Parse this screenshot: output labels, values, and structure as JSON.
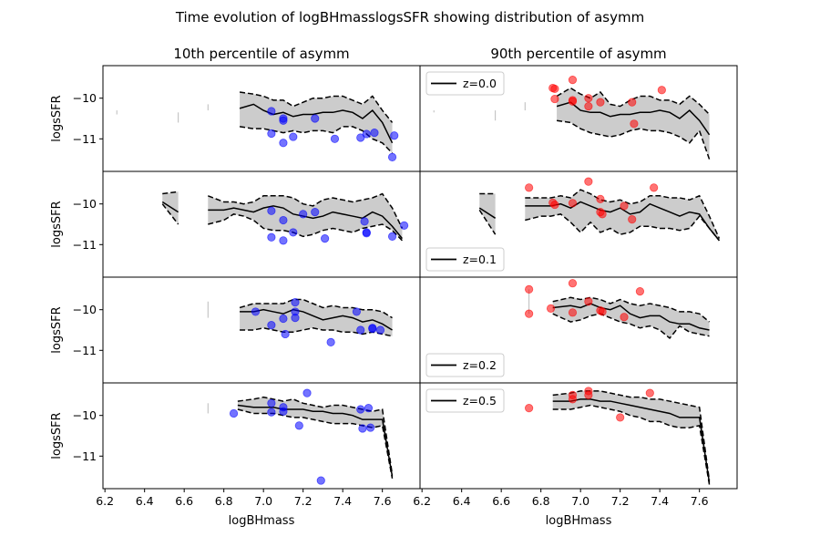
{
  "figure": {
    "title": "Time evolution of logBHmasslogsSFR showing distribution of asymm",
    "left_column_title": "10th percentile of asymm",
    "right_column_title": "90th percentile of asymm",
    "xlabel": "logBHmass",
    "ylabel": "logsSFR",
    "x_ticks": [
      "6.2",
      "6.4",
      "6.6",
      "6.8",
      "7.0",
      "7.2",
      "7.4",
      "7.6"
    ],
    "y_ticks": [
      "−10",
      "−11"
    ]
  },
  "colors": {
    "band": "#cccccc",
    "line": "#000000",
    "left_points": "#0000ff",
    "right_points": "#ff0000"
  },
  "chart_data": {
    "type": "line+scatter",
    "xlim": [
      6.19,
      7.79
    ],
    "ylim": [
      -11.8,
      -9.2
    ],
    "shared_axes": true,
    "panels": [
      {
        "id": "r0-left",
        "row": 0,
        "col": 0,
        "legend": null,
        "x": [
          6.26,
          6.57,
          6.72,
          6.88,
          6.95,
          7.0,
          7.05,
          7.1,
          7.15,
          7.2,
          7.25,
          7.3,
          7.35,
          7.4,
          7.45,
          7.5,
          7.55,
          7.6,
          7.65
        ],
        "median": [
          null,
          null,
          null,
          -10.25,
          -10.15,
          -10.3,
          -10.4,
          -10.35,
          -10.45,
          -10.4,
          -10.4,
          -10.35,
          -10.35,
          -10.3,
          -10.35,
          -10.5,
          -10.3,
          -10.6,
          -11.1
        ],
        "p_low": [
          null,
          null,
          null,
          -10.7,
          -10.75,
          -10.75,
          -10.8,
          -10.85,
          -10.8,
          -10.85,
          -10.8,
          -10.8,
          -10.85,
          -10.7,
          -10.7,
          -10.8,
          -11.0,
          -11.1,
          -11.35
        ],
        "p_high": [
          null,
          null,
          null,
          -9.85,
          -9.9,
          -9.95,
          -10.05,
          -10.05,
          -10.2,
          -10.1,
          -10.0,
          -10.0,
          -9.95,
          -9.95,
          -10.05,
          -10.15,
          -9.95,
          -10.3,
          -10.6
        ],
        "vticks": [
          {
            "x": 6.26,
            "y0": -10.3,
            "y1": -10.4
          },
          {
            "x": 6.57,
            "y0": -10.35,
            "y1": -10.6
          },
          {
            "x": 6.72,
            "y0": -10.15,
            "y1": -10.3
          }
        ],
        "points": [
          [
            7.04,
            -10.32
          ],
          [
            7.04,
            -10.87
          ],
          [
            7.1,
            -10.5
          ],
          [
            7.1,
            -10.55
          ],
          [
            7.1,
            -11.1
          ],
          [
            7.15,
            -10.95
          ],
          [
            7.26,
            -10.5
          ],
          [
            7.36,
            -11.0
          ],
          [
            7.49,
            -10.97
          ],
          [
            7.52,
            -10.88
          ],
          [
            7.56,
            -10.85
          ],
          [
            7.66,
            -10.92
          ],
          [
            7.65,
            -11.45
          ]
        ]
      },
      {
        "id": "r0-right",
        "row": 0,
        "col": 1,
        "legend": {
          "label": "z=0.0",
          "position": "upper left"
        },
        "x": [
          6.26,
          6.57,
          6.72,
          6.88,
          6.95,
          7.0,
          7.05,
          7.1,
          7.15,
          7.2,
          7.25,
          7.3,
          7.35,
          7.4,
          7.45,
          7.5,
          7.55,
          7.6,
          7.65
        ],
        "median": [
          null,
          null,
          null,
          -10.2,
          -10.1,
          -10.3,
          -10.35,
          -10.35,
          -10.45,
          -10.4,
          -10.4,
          -10.35,
          -10.35,
          -10.3,
          -10.35,
          -10.5,
          -10.3,
          -10.55,
          -10.9
        ],
        "p_low": [
          null,
          null,
          null,
          -10.55,
          -10.6,
          -10.75,
          -10.85,
          -10.9,
          -10.95,
          -10.9,
          -10.8,
          -10.75,
          -10.8,
          -10.8,
          -10.85,
          -10.95,
          -11.1,
          -10.8,
          -11.5
        ],
        "p_high": [
          null,
          null,
          null,
          -9.95,
          -9.75,
          -9.9,
          -10.0,
          -9.85,
          -10.15,
          -10.2,
          -10.05,
          -9.95,
          -9.95,
          -10.05,
          -10.05,
          -10.15,
          -9.95,
          -10.15,
          -10.4
        ],
        "vticks": [
          {
            "x": 6.26,
            "y0": -10.3,
            "y1": -10.35
          },
          {
            "x": 6.57,
            "y0": -10.3,
            "y1": -10.55
          },
          {
            "x": 6.72,
            "y0": -10.1,
            "y1": -10.3
          }
        ],
        "points": [
          [
            6.86,
            -9.75
          ],
          [
            6.87,
            -9.77
          ],
          [
            6.87,
            -10.02
          ],
          [
            6.96,
            -9.55
          ],
          [
            6.96,
            -10.05
          ],
          [
            6.96,
            -10.08
          ],
          [
            7.04,
            -10.0
          ],
          [
            7.04,
            -10.2
          ],
          [
            7.1,
            -10.1
          ],
          [
            7.26,
            -10.1
          ],
          [
            7.27,
            -10.63
          ],
          [
            7.41,
            -9.8
          ]
        ]
      },
      {
        "id": "r1-left",
        "row": 1,
        "col": 0,
        "legend": null,
        "x": [
          6.49,
          6.57,
          6.72,
          6.8,
          6.85,
          6.9,
          6.95,
          7.0,
          7.05,
          7.1,
          7.15,
          7.2,
          7.25,
          7.3,
          7.35,
          7.4,
          7.45,
          7.5,
          7.55,
          7.6,
          7.65,
          7.7
        ],
        "median": [
          -9.95,
          -10.2,
          -10.15,
          -10.15,
          -10.1,
          -10.15,
          -10.2,
          -10.1,
          -10.05,
          -10.1,
          -10.25,
          -10.3,
          -10.35,
          -10.3,
          -10.2,
          -10.25,
          -10.3,
          -10.35,
          -10.2,
          -10.3,
          -10.55,
          -10.85
        ],
        "p_low": [
          -10.0,
          -10.5,
          -10.5,
          -10.4,
          -10.25,
          -10.3,
          -10.4,
          -10.6,
          -10.65,
          -10.65,
          -10.7,
          -10.8,
          -10.75,
          -10.65,
          -10.6,
          -10.65,
          -10.7,
          -10.6,
          -10.55,
          -10.5,
          -10.65,
          -10.9
        ],
        "p_high": [
          -9.75,
          -9.7,
          -9.8,
          -9.95,
          -9.95,
          -10.0,
          -9.95,
          -9.8,
          -9.8,
          -9.8,
          -9.85,
          -10.0,
          -10.05,
          -9.9,
          -9.85,
          -9.9,
          -9.95,
          -9.9,
          -9.85,
          -9.75,
          -10.1,
          -10.6
        ],
        "gap_after": 1,
        "vticks": [],
        "points": [
          [
            7.04,
            -10.17
          ],
          [
            7.04,
            -10.82
          ],
          [
            7.1,
            -10.4
          ],
          [
            7.1,
            -10.9
          ],
          [
            7.15,
            -10.7
          ],
          [
            7.2,
            -10.25
          ],
          [
            7.26,
            -10.2
          ],
          [
            7.31,
            -10.85
          ],
          [
            7.51,
            -10.43
          ],
          [
            7.52,
            -10.7
          ],
          [
            7.52,
            -10.72
          ],
          [
            7.65,
            -10.8
          ],
          [
            7.71,
            -10.53
          ]
        ]
      },
      {
        "id": "r1-right",
        "row": 1,
        "col": 1,
        "legend": {
          "label": "z=0.1",
          "position": "lower left"
        },
        "x": [
          6.49,
          6.57,
          6.72,
          6.8,
          6.85,
          6.9,
          6.95,
          7.0,
          7.05,
          7.1,
          7.15,
          7.2,
          7.25,
          7.3,
          7.35,
          7.4,
          7.45,
          7.5,
          7.55,
          7.6,
          7.65,
          7.7
        ],
        "median": [
          -10.1,
          -10.35,
          -10.05,
          -10.05,
          -10.05,
          -10.0,
          -10.1,
          -9.95,
          -10.05,
          -10.15,
          -10.2,
          -10.1,
          -10.25,
          -10.2,
          -10.0,
          -10.1,
          -10.2,
          -10.3,
          -10.2,
          -10.25,
          -10.6,
          -10.9
        ],
        "p_low": [
          -10.15,
          -10.75,
          -10.4,
          -10.3,
          -10.3,
          -10.25,
          -10.45,
          -10.7,
          -10.45,
          -10.7,
          -10.6,
          -10.75,
          -10.7,
          -10.55,
          -10.55,
          -10.6,
          -10.6,
          -10.65,
          -10.6,
          -10.3,
          -10.6,
          -10.9
        ],
        "p_high": [
          -9.75,
          -9.75,
          -9.85,
          -9.85,
          -9.85,
          -9.8,
          -9.85,
          -9.65,
          -9.75,
          -9.9,
          -9.95,
          -9.9,
          -10.0,
          -9.95,
          -9.8,
          -9.8,
          -9.85,
          -9.85,
          -9.9,
          -9.8,
          -10.3,
          -10.85
        ],
        "gap_after": 1,
        "vticks": [],
        "points": [
          [
            6.74,
            -9.6
          ],
          [
            6.86,
            -9.97
          ],
          [
            6.87,
            -10.02
          ],
          [
            6.96,
            -9.98
          ],
          [
            7.04,
            -9.45
          ],
          [
            7.1,
            -9.88
          ],
          [
            7.1,
            -10.2
          ],
          [
            7.11,
            -10.25
          ],
          [
            7.22,
            -10.05
          ],
          [
            7.26,
            -10.38
          ],
          [
            7.37,
            -9.6
          ]
        ]
      },
      {
        "id": "r2-left",
        "row": 2,
        "col": 0,
        "legend": null,
        "x": [
          6.72,
          6.88,
          6.95,
          7.0,
          7.05,
          7.1,
          7.15,
          7.2,
          7.25,
          7.3,
          7.35,
          7.4,
          7.45,
          7.5,
          7.55,
          7.6,
          7.65
        ],
        "median": [
          null,
          -10.05,
          -10.05,
          -10.0,
          -10.05,
          -10.1,
          -10.0,
          -10.05,
          -10.15,
          -10.25,
          -10.2,
          -10.15,
          -10.2,
          -10.3,
          -10.25,
          -10.35,
          -10.5
        ],
        "p_low": [
          null,
          -10.5,
          -10.5,
          -10.45,
          -10.5,
          -10.55,
          -10.55,
          -10.5,
          -10.45,
          -10.5,
          -10.5,
          -10.55,
          -10.55,
          -10.6,
          -10.55,
          -10.6,
          -10.65
        ],
        "p_high": [
          null,
          -9.95,
          -9.85,
          -9.85,
          -9.85,
          -9.85,
          -9.75,
          -9.75,
          -9.85,
          -9.95,
          -9.9,
          -9.95,
          -9.95,
          -10.0,
          -10.0,
          -10.05,
          -10.2
        ],
        "vticks": [
          {
            "x": 6.72,
            "y0": -9.8,
            "y1": -10.2
          }
        ],
        "points": [
          [
            6.96,
            -10.05
          ],
          [
            7.04,
            -10.38
          ],
          [
            7.1,
            -10.22
          ],
          [
            7.11,
            -10.6
          ],
          [
            7.16,
            -9.82
          ],
          [
            7.16,
            -10.05
          ],
          [
            7.16,
            -10.2
          ],
          [
            7.34,
            -10.8
          ],
          [
            7.47,
            -10.05
          ],
          [
            7.49,
            -10.5
          ],
          [
            7.55,
            -10.45
          ],
          [
            7.55,
            -10.47
          ],
          [
            7.59,
            -10.5
          ]
        ]
      },
      {
        "id": "r2-right",
        "row": 2,
        "col": 1,
        "legend": {
          "label": "z=0.2",
          "position": "lower left"
        },
        "x": [
          6.74,
          6.86,
          6.95,
          7.0,
          7.05,
          7.1,
          7.15,
          7.2,
          7.25,
          7.3,
          7.35,
          7.4,
          7.45,
          7.5,
          7.55,
          7.6,
          7.65
        ],
        "median": [
          null,
          -9.95,
          -9.9,
          -9.95,
          -9.85,
          -9.95,
          -10.0,
          -9.9,
          -10.1,
          -10.2,
          -10.15,
          -10.15,
          -10.3,
          -10.35,
          -10.35,
          -10.45,
          -10.5
        ],
        "p_low": [
          null,
          -10.1,
          -10.3,
          -10.25,
          -10.15,
          -10.1,
          -10.2,
          -10.3,
          -10.35,
          -10.45,
          -10.4,
          -10.5,
          -10.7,
          -10.4,
          -10.55,
          -10.6,
          -10.65
        ],
        "p_high": [
          null,
          -9.8,
          -9.7,
          -9.75,
          -9.7,
          -9.75,
          -9.85,
          -9.75,
          -9.85,
          -9.9,
          -9.85,
          -9.9,
          -9.95,
          -10.05,
          -10.05,
          -10.1,
          -10.3
        ],
        "vticks": [
          {
            "x": 6.74,
            "y0": -9.5,
            "y1": -10.1
          }
        ],
        "points": [
          [
            6.74,
            -9.5
          ],
          [
            6.74,
            -10.1
          ],
          [
            6.85,
            -9.97
          ],
          [
            6.96,
            -9.35
          ],
          [
            6.96,
            -10.07
          ],
          [
            7.04,
            -9.8
          ],
          [
            7.1,
            -10.02
          ],
          [
            7.11,
            -10.05
          ],
          [
            7.22,
            -10.18
          ],
          [
            7.3,
            -9.55
          ]
        ]
      },
      {
        "id": "r3-left",
        "row": 3,
        "col": 0,
        "legend": null,
        "x": [
          6.72,
          6.87,
          6.95,
          7.0,
          7.05,
          7.1,
          7.15,
          7.2,
          7.25,
          7.3,
          7.35,
          7.4,
          7.45,
          7.5,
          7.55,
          7.6,
          7.65
        ],
        "median": [
          null,
          -9.75,
          -9.8,
          -9.8,
          -9.8,
          -9.85,
          -9.85,
          -9.85,
          -9.9,
          -9.9,
          -9.95,
          -9.95,
          -10.0,
          -10.1,
          -10.1,
          -10.1,
          -11.5
        ],
        "p_low": [
          null,
          -9.85,
          -9.95,
          -9.95,
          -9.95,
          -10.0,
          -10.05,
          -10.05,
          -10.1,
          -10.15,
          -10.2,
          -10.2,
          -10.2,
          -10.25,
          -10.3,
          -10.25,
          -11.55
        ],
        "p_high": [
          null,
          -9.65,
          -9.6,
          -9.55,
          -9.6,
          -9.65,
          -9.6,
          -9.7,
          -9.75,
          -9.8,
          -9.75,
          -9.75,
          -9.8,
          -9.85,
          -9.9,
          -9.85,
          -11.45
        ],
        "vticks": [
          {
            "x": 6.72,
            "y0": -9.7,
            "y1": -9.95
          }
        ],
        "points": [
          [
            6.85,
            -9.95
          ],
          [
            7.04,
            -9.7
          ],
          [
            7.04,
            -9.92
          ],
          [
            7.1,
            -9.8
          ],
          [
            7.1,
            -9.9
          ],
          [
            7.18,
            -10.25
          ],
          [
            7.22,
            -9.45
          ],
          [
            7.29,
            -11.6
          ],
          [
            7.49,
            -9.85
          ],
          [
            7.5,
            -10.32
          ],
          [
            7.53,
            -9.82
          ],
          [
            7.54,
            -10.3
          ]
        ]
      },
      {
        "id": "r3-right",
        "row": 3,
        "col": 1,
        "legend": {
          "label": "z=0.5",
          "position": "upper left"
        },
        "x": [
          6.74,
          6.86,
          6.95,
          7.0,
          7.05,
          7.1,
          7.15,
          7.2,
          7.25,
          7.3,
          7.35,
          7.4,
          7.45,
          7.5,
          7.55,
          7.6,
          7.65
        ],
        "median": [
          null,
          -9.65,
          -9.65,
          -9.6,
          -9.6,
          -9.65,
          -9.65,
          -9.7,
          -9.75,
          -9.8,
          -9.85,
          -9.9,
          -9.95,
          -10.05,
          -10.05,
          -10.05,
          -11.65
        ],
        "p_low": [
          null,
          -9.85,
          -9.85,
          -9.8,
          -9.75,
          -9.8,
          -9.85,
          -9.9,
          -10.0,
          -10.05,
          -10.15,
          -10.15,
          -10.25,
          -10.3,
          -10.3,
          -10.25,
          -11.7
        ],
        "p_high": [
          null,
          -9.5,
          -9.45,
          -9.4,
          -9.4,
          -9.4,
          -9.45,
          -9.5,
          -9.55,
          -9.55,
          -9.6,
          -9.6,
          -9.65,
          -9.7,
          -9.75,
          -9.8,
          -11.6
        ],
        "vticks": [],
        "points": [
          [
            6.74,
            -9.82
          ],
          [
            6.96,
            -9.5
          ],
          [
            6.96,
            -9.6
          ],
          [
            7.04,
            -9.4
          ],
          [
            7.04,
            -9.5
          ],
          [
            7.2,
            -10.05
          ],
          [
            7.35,
            -9.45
          ]
        ]
      }
    ]
  }
}
